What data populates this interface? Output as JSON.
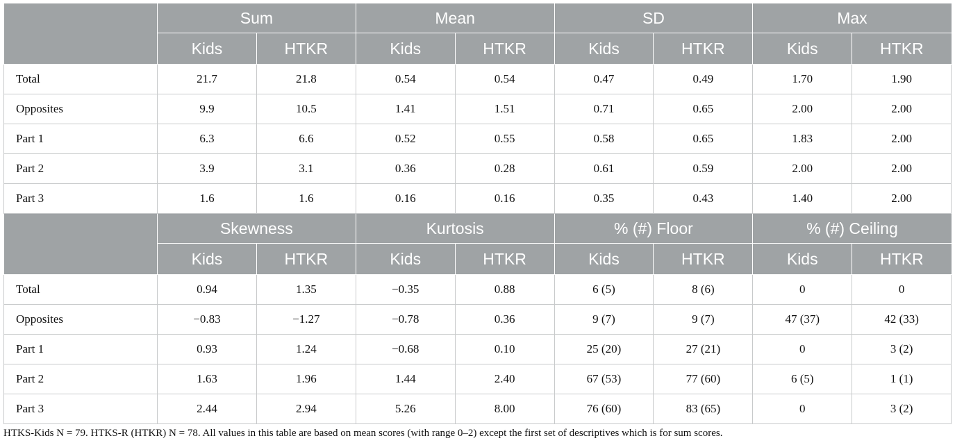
{
  "table1": {
    "groups": [
      "Sum",
      "Mean",
      "SD",
      "Max"
    ],
    "subheaders": [
      "Kids",
      "HTKR",
      "Kids",
      "HTKR",
      "Kids",
      "HTKR",
      "Kids",
      "HTKR"
    ],
    "rows": [
      {
        "label": "Total",
        "values": [
          "21.7",
          "21.8",
          "0.54",
          "0.54",
          "0.47",
          "0.49",
          "1.70",
          "1.90"
        ]
      },
      {
        "label": "Opposites",
        "values": [
          "9.9",
          "10.5",
          "1.41",
          "1.51",
          "0.71",
          "0.65",
          "2.00",
          "2.00"
        ]
      },
      {
        "label": "Part 1",
        "values": [
          "6.3",
          "6.6",
          "0.52",
          "0.55",
          "0.58",
          "0.65",
          "1.83",
          "2.00"
        ]
      },
      {
        "label": "Part 2",
        "values": [
          "3.9",
          "3.1",
          "0.36",
          "0.28",
          "0.61",
          "0.59",
          "2.00",
          "2.00"
        ]
      },
      {
        "label": "Part 3",
        "values": [
          "1.6",
          "1.6",
          "0.16",
          "0.16",
          "0.35",
          "0.43",
          "1.40",
          "2.00"
        ]
      }
    ]
  },
  "table2": {
    "groups": [
      "Skewness",
      "Kurtosis",
      "% (#) Floor",
      "% (#) Ceiling"
    ],
    "subheaders": [
      "Kids",
      "HTKR",
      "Kids",
      "HTKR",
      "Kids",
      "HTKR",
      "Kids",
      "HTKR"
    ],
    "rows": [
      {
        "label": "Total",
        "values": [
          "0.94",
          "1.35",
          "−0.35",
          "0.88",
          "6 (5)",
          "8 (6)",
          "0",
          "0"
        ]
      },
      {
        "label": "Opposites",
        "values": [
          "−0.83",
          "−1.27",
          "−0.78",
          "0.36",
          "9 (7)",
          "9 (7)",
          "47 (37)",
          "42 (33)"
        ]
      },
      {
        "label": "Part 1",
        "values": [
          "0.93",
          "1.24",
          "−0.68",
          "0.10",
          "25 (20)",
          "27 (21)",
          "0",
          "3 (2)"
        ]
      },
      {
        "label": "Part 2",
        "values": [
          "1.63",
          "1.96",
          "1.44",
          "2.40",
          "67 (53)",
          "77 (60)",
          "6 (5)",
          "1 (1)"
        ]
      },
      {
        "label": "Part 3",
        "values": [
          "2.44",
          "2.94",
          "5.26",
          "8.00",
          "76 (60)",
          "83 (65)",
          "0",
          "3 (2)"
        ]
      }
    ]
  },
  "footnote": "HTKS-Kids N = 79. HTKS-R (HTKR) N = 78. All values in this table are based on mean scores (with range 0–2) except the first set of descriptives which is for sum scores."
}
